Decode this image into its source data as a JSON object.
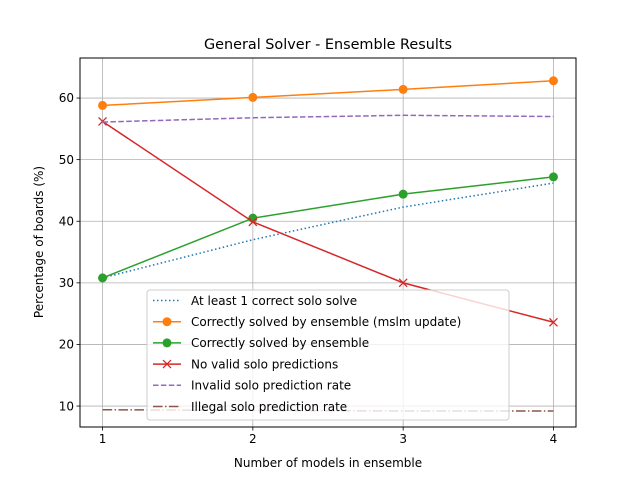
{
  "chart_data": {
    "type": "line",
    "title": "General Solver - Ensemble Results",
    "xlabel": "Number of models in ensemble",
    "ylabel": "Percentage of boards (%)",
    "x": [
      1,
      2,
      3,
      4
    ],
    "xticks": [
      "1",
      "2",
      "3",
      "4"
    ],
    "yticks": [
      10,
      20,
      30,
      40,
      50,
      60
    ],
    "xlim": [
      0.85,
      4.15
    ],
    "ylim": [
      6.6,
      66.5
    ],
    "grid": true,
    "legend_position": "lower center",
    "series": [
      {
        "name": "At least 1 correct solo solve",
        "values": [
          30.8,
          37.0,
          42.3,
          46.2
        ],
        "color": "#1f77b4",
        "linestyle": "dotted",
        "marker": "none"
      },
      {
        "name": "Correctly solved by ensemble (mslm update)",
        "values": [
          58.8,
          60.1,
          61.4,
          62.8
        ],
        "color": "#ff7f0e",
        "linestyle": "solid",
        "marker": "circle"
      },
      {
        "name": "Correctly solved by ensemble",
        "values": [
          30.8,
          40.5,
          44.4,
          47.2
        ],
        "color": "#2ca02c",
        "linestyle": "solid",
        "marker": "circle"
      },
      {
        "name": "No valid solo predictions",
        "values": [
          56.2,
          39.9,
          30.0,
          23.6
        ],
        "color": "#d62728",
        "linestyle": "solid",
        "marker": "x"
      },
      {
        "name": "Invalid solo prediction rate",
        "values": [
          56.1,
          56.8,
          57.2,
          57.0
        ],
        "color": "#9467bd",
        "linestyle": "dashed",
        "marker": "none"
      },
      {
        "name": "Illegal solo prediction rate",
        "values": [
          9.4,
          9.3,
          9.2,
          9.2
        ],
        "color": "#8c564b",
        "linestyle": "dashdot",
        "marker": "none"
      }
    ]
  }
}
